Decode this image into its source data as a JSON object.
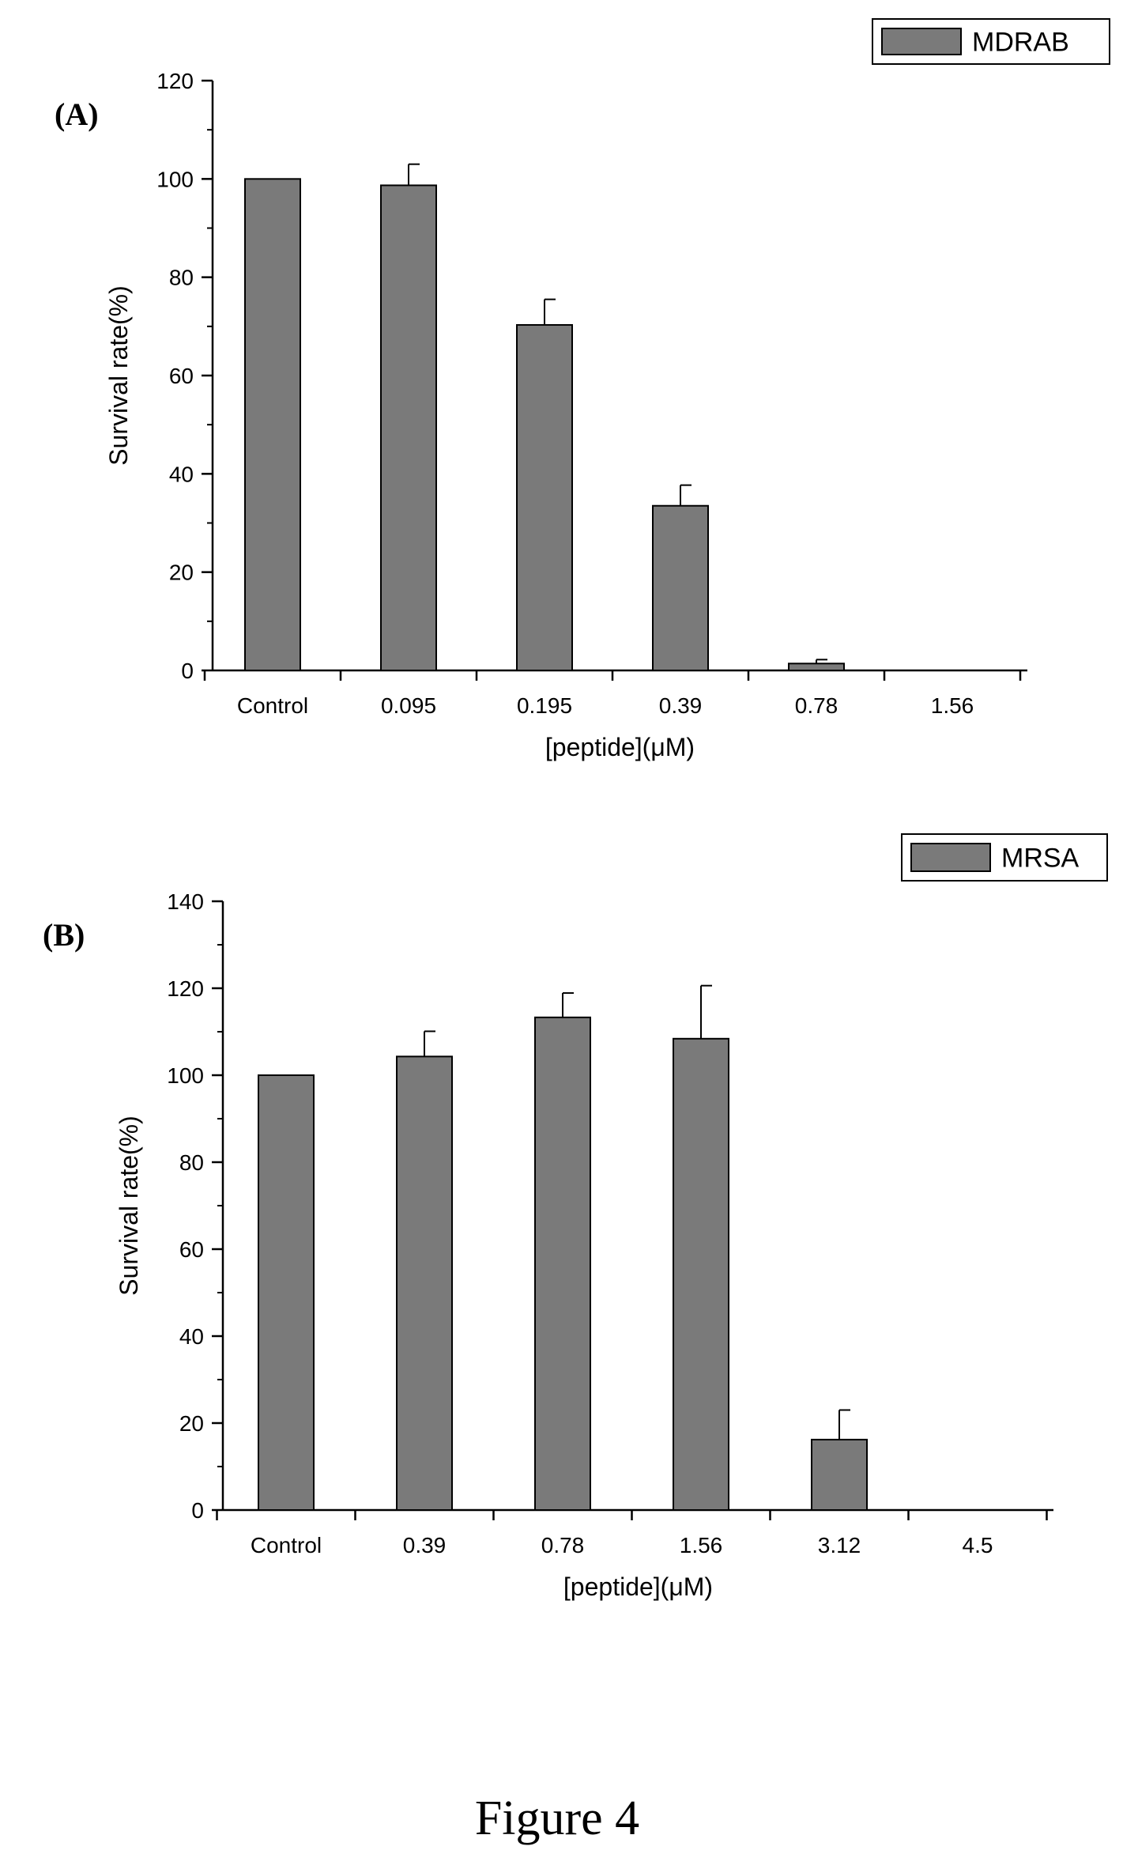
{
  "caption": "Figure 4",
  "colors": {
    "bar_fill": "#7a7a7a",
    "bar_stroke": "#000000",
    "axis": "#000000"
  },
  "chart_data": [
    {
      "type": "bar",
      "panel_label": "(A)",
      "title": "",
      "xlabel": "[peptide](μM)",
      "ylabel": "Survival rate(%)",
      "categories": [
        "Control",
        "0.095",
        "0.195",
        "0.39",
        "0.78",
        "1.56"
      ],
      "series": [
        {
          "name": "MDRAB",
          "values": [
            100,
            98.7,
            70.3,
            33.5,
            1.4,
            0
          ],
          "errors": [
            0,
            4.3,
            5.2,
            4.2,
            0.8,
            0
          ]
        }
      ],
      "ylim": [
        0,
        120
      ],
      "yticks": [
        0,
        20,
        40,
        60,
        80,
        100,
        120
      ],
      "legend_position": "top-right",
      "grid": false
    },
    {
      "type": "bar",
      "panel_label": "(B)",
      "title": "",
      "xlabel": "[peptide](μM)",
      "ylabel": "Survival rate(%)",
      "categories": [
        "Control",
        "0.39",
        "0.78",
        "1.56",
        "3.12",
        "4.5"
      ],
      "series": [
        {
          "name": "MRSA",
          "values": [
            100,
            104.3,
            113.3,
            108.4,
            16.2,
            0
          ],
          "errors": [
            0,
            5.8,
            5.6,
            12.2,
            6.8,
            0
          ]
        }
      ],
      "ylim": [
        0,
        140
      ],
      "yticks": [
        0,
        20,
        40,
        60,
        80,
        100,
        120,
        140
      ],
      "legend_position": "top-right",
      "grid": false
    }
  ]
}
